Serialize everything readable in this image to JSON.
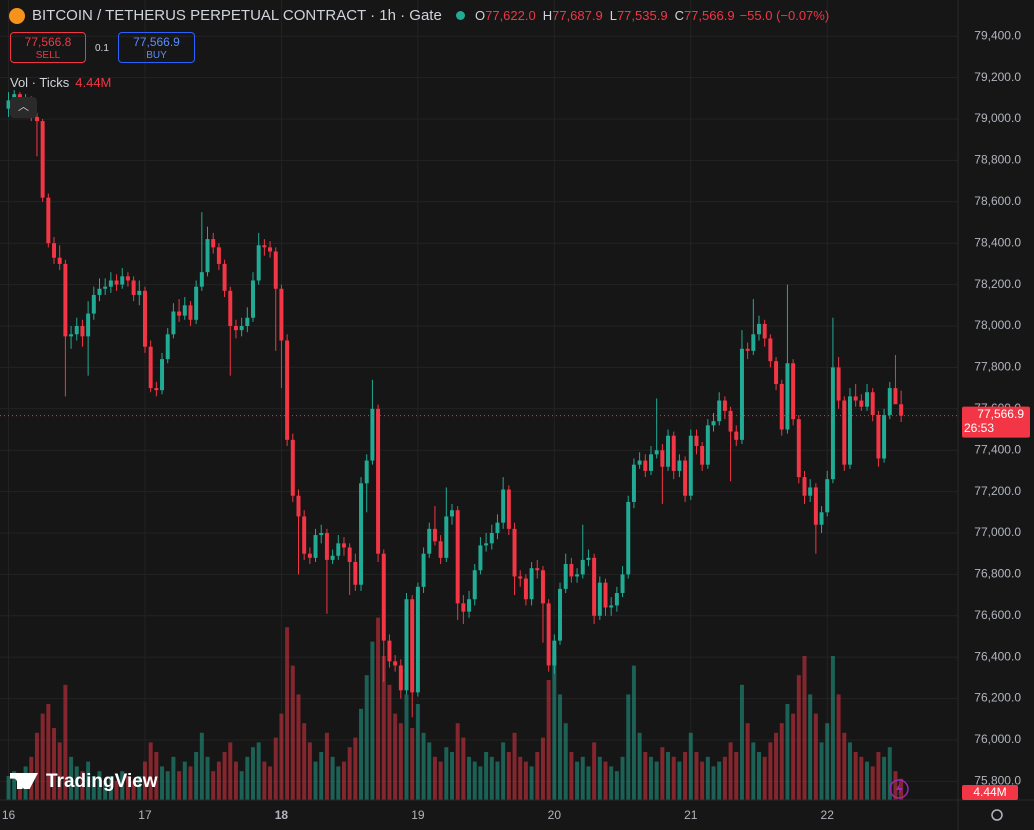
{
  "chart_data": {
    "type": "candlestick",
    "title": "BITCOIN / TETHERUS PERPETUAL CONTRACT · 1h · Gate",
    "ohlc_legend": [
      {
        "label": "O",
        "value": "77,622.0"
      },
      {
        "label": "H",
        "value": "77,687.9"
      },
      {
        "label": "L",
        "value": "77,535.9"
      },
      {
        "label": "C",
        "value": "77,566.9"
      }
    ],
    "change": "−55.0 (−0.07%)",
    "up_color": "#22ab94",
    "down_color": "#f23645",
    "open": [
      79050,
      79090,
      79120,
      79060,
      79100,
      79010,
      78990,
      78620,
      78400,
      78330,
      78300,
      77950,
      77960,
      78000,
      77950,
      78060,
      78150,
      78180,
      78190,
      78220,
      78200,
      78240,
      78220,
      78150,
      78170,
      77900,
      77700,
      77690,
      77840,
      77960,
      78070,
      78050,
      78100,
      78030,
      78190,
      78260,
      78420,
      78380,
      78300,
      78170,
      78000,
      77980,
      78000,
      78040,
      78220,
      78390,
      78380,
      78360,
      78180,
      77930,
      77450,
      77180,
      77080,
      76900,
      76880,
      76990,
      77000,
      76870,
      76890,
      76950,
      76930,
      76860,
      76750,
      77240,
      77350,
      77600,
      76900,
      76480,
      76380,
      76360,
      76240,
      76680,
      76230,
      76740,
      76900,
      77020,
      76960,
      76880,
      77080,
      77110,
      76660,
      76620,
      76680,
      76820,
      76940,
      76950,
      77000,
      77050,
      77210,
      77020,
      76790,
      76780,
      76680,
      76830,
      76820,
      76660,
      76360,
      76480,
      76730,
      76850,
      76790,
      76800,
      76870,
      76880,
      76600,
      76760,
      76640,
      76650,
      76710,
      76800,
      77150,
      77330,
      77350,
      77300,
      77380,
      77400,
      77320,
      77470,
      77300,
      77350,
      77180,
      77470,
      77420,
      77330,
      77520,
      77540,
      77640,
      77590,
      77490,
      77450,
      77890,
      77880,
      77960,
      78010,
      77940,
      77830,
      77720,
      77500,
      77820,
      77550,
      77270,
      77180,
      77220,
      77040,
      77100,
      77260,
      77800,
      77640,
      77330,
      77660,
      77640,
      77610,
      77680,
      77570,
      77360,
      77570,
      77700,
      77622
    ],
    "high": [
      79130,
      79140,
      79130,
      79120,
      79110,
      79030,
      79000,
      78640,
      78430,
      78390,
      78320,
      78000,
      78040,
      78030,
      78120,
      78190,
      78230,
      78230,
      78260,
      78250,
      78280,
      78260,
      78240,
      78220,
      78190,
      77930,
      77730,
      77870,
      77990,
      78110,
      78130,
      78140,
      78120,
      78220,
      78550,
      78480,
      78450,
      78400,
      78320,
      78190,
      78030,
      78040,
      78090,
      78260,
      78450,
      78420,
      78410,
      78380,
      78200,
      77960,
      77480,
      77210,
      77110,
      76930,
      77020,
      77040,
      77020,
      76920,
      76990,
      76980,
      76950,
      76900,
      77270,
      77380,
      77740,
      77620,
      76920,
      76510,
      76410,
      76390,
      76710,
      76700,
      76760,
      76930,
      77050,
      77130,
      76990,
      77220,
      77140,
      77130,
      76700,
      76720,
      76850,
      76980,
      77000,
      77040,
      77090,
      77270,
      77230,
      77050,
      76820,
      76800,
      76860,
      76870,
      76840,
      76680,
      76510,
      76760,
      76900,
      76880,
      76830,
      77040,
      76920,
      76900,
      76790,
      76780,
      76690,
      76740,
      76840,
      77180,
      77360,
      77390,
      77380,
      77420,
      77650,
      77430,
      77500,
      77490,
      77380,
      77370,
      77500,
      77500,
      77440,
      77550,
      77580,
      77680,
      77660,
      77610,
      77520,
      77980,
      77920,
      78130,
      78050,
      78030,
      77960,
      77850,
      77740,
      78200,
      77840,
      77570,
      77300,
      77260,
      77240,
      77130,
      77300,
      78040,
      77850,
      77660,
      77700,
      77720,
      77670,
      77720,
      77700,
      77590,
      77600,
      77730,
      77860,
      77687.9
    ],
    "low": [
      79010,
      79060,
      79040,
      79030,
      78990,
      78820,
      78600,
      78380,
      78300,
      78270,
      77660,
      77890,
      77930,
      77900,
      77760,
      78030,
      78120,
      78150,
      78160,
      78170,
      78180,
      78190,
      78120,
      78100,
      77870,
      77680,
      77660,
      77670,
      77820,
      77940,
      78020,
      78030,
      78000,
      78010,
      78170,
      78240,
      78350,
      78270,
      78140,
      77760,
      77940,
      77950,
      77970,
      78020,
      78200,
      78340,
      78330,
      77880,
      77700,
      77420,
      77150,
      76800,
      76870,
      76850,
      76860,
      76950,
      76610,
      76850,
      76870,
      76890,
      76700,
      76720,
      76720,
      77100,
      77330,
      76860,
      76280,
      76350,
      76330,
      76200,
      76220,
      76110,
      76210,
      76710,
      76880,
      76940,
      76850,
      76860,
      77040,
      76580,
      76560,
      76590,
      76650,
      76800,
      76910,
      76920,
      76970,
      77020,
      76990,
      76700,
      76740,
      76650,
      76650,
      76780,
      76470,
      76330,
      76320,
      76460,
      76710,
      76760,
      76760,
      76780,
      76840,
      76560,
      76580,
      76600,
      76600,
      76620,
      76690,
      76780,
      77120,
      77310,
      77270,
      77280,
      77360,
      77140,
      77300,
      77260,
      77270,
      77150,
      77160,
      77380,
      77300,
      77310,
      77490,
      77520,
      77550,
      77250,
      77420,
      77430,
      77840,
      77860,
      77930,
      77900,
      77800,
      77690,
      77470,
      77480,
      77520,
      77240,
      77140,
      77150,
      76900,
      77000,
      77080,
      77240,
      77600,
      77300,
      77310,
      77610,
      77590,
      77590,
      77540,
      77320,
      77340,
      77550,
      77640,
      77535.9
    ],
    "close": [
      79090,
      79120,
      79060,
      79100,
      79010,
      78990,
      78620,
      78400,
      78330,
      78300,
      77950,
      77960,
      78000,
      77950,
      78060,
      78150,
      78180,
      78190,
      78220,
      78200,
      78240,
      78220,
      78150,
      78170,
      77900,
      77700,
      77690,
      77840,
      77960,
      78070,
      78050,
      78100,
      78030,
      78190,
      78260,
      78420,
      78380,
      78300,
      78170,
      78000,
      77980,
      78000,
      78040,
      78220,
      78390,
      78380,
      78360,
      78180,
      77930,
      77450,
      77180,
      77080,
      76900,
      76880,
      76990,
      77000,
      76870,
      76890,
      76950,
      76930,
      76860,
      76750,
      77240,
      77350,
      77600,
      76900,
      76480,
      76380,
      76360,
      76240,
      76680,
      76230,
      76740,
      76900,
      77020,
      76960,
      76880,
      77080,
      77110,
      76660,
      76620,
      76680,
      76820,
      76940,
      76950,
      77000,
      77050,
      77210,
      77020,
      76790,
      76780,
      76680,
      76830,
      76820,
      76660,
      76360,
      76480,
      76730,
      76850,
      76790,
      76800,
      76870,
      76880,
      76600,
      76760,
      76640,
      76650,
      76710,
      76800,
      77150,
      77330,
      77350,
      77300,
      77380,
      77400,
      77320,
      77470,
      77300,
      77350,
      77180,
      77470,
      77420,
      77330,
      77520,
      77540,
      77640,
      77590,
      77490,
      77450,
      77890,
      77880,
      77960,
      78010,
      77940,
      77830,
      77720,
      77500,
      77820,
      77550,
      77270,
      77180,
      77220,
      77040,
      77100,
      77260,
      77800,
      77640,
      77330,
      77660,
      77640,
      77610,
      77680,
      77570,
      77360,
      77570,
      77700,
      77622,
      77566.9
    ],
    "volume": [
      5,
      6,
      4,
      7,
      9,
      14,
      18,
      20,
      15,
      12,
      24,
      9,
      7,
      6,
      8,
      5,
      6,
      4,
      5,
      4,
      6,
      5,
      4,
      5,
      8,
      12,
      10,
      7,
      6,
      9,
      6,
      8,
      7,
      10,
      14,
      9,
      6,
      8,
      10,
      12,
      8,
      6,
      9,
      11,
      12,
      8,
      7,
      13,
      18,
      36,
      28,
      22,
      16,
      12,
      8,
      10,
      14,
      9,
      7,
      8,
      11,
      13,
      19,
      26,
      33,
      38,
      30,
      24,
      18,
      16,
      22,
      15,
      20,
      14,
      12,
      9,
      8,
      11,
      10,
      16,
      13,
      9,
      8,
      7,
      10,
      9,
      8,
      12,
      10,
      14,
      9,
      8,
      7,
      10,
      13,
      25,
      30,
      22,
      16,
      10,
      8,
      9,
      7,
      12,
      9,
      8,
      7,
      6,
      9,
      22,
      28,
      14,
      10,
      9,
      8,
      11,
      10,
      9,
      8,
      10,
      14,
      10,
      8,
      9,
      7,
      8,
      9,
      12,
      10,
      24,
      16,
      12,
      10,
      9,
      12,
      14,
      16,
      20,
      18,
      26,
      30,
      22,
      18,
      12,
      16,
      30,
      22,
      14,
      12,
      10,
      9,
      8,
      7,
      10,
      9,
      11,
      6,
      4.44
    ],
    "volume_title": "Vol · Ticks",
    "volume_last_label": "4.44M",
    "last_price_label": "77,566.9",
    "countdown": "26:53",
    "xlim": [
      -1.5,
      167
    ],
    "xticks": [
      {
        "value": 0,
        "label": "16"
      },
      {
        "value": 24,
        "label": "17"
      },
      {
        "value": 48,
        "label": "18"
      },
      {
        "value": 72,
        "label": "19"
      },
      {
        "value": 96,
        "label": "20"
      },
      {
        "value": 120,
        "label": "21"
      },
      {
        "value": 144,
        "label": "22"
      }
    ],
    "ylim": [
      75710,
      79575
    ],
    "yticks": [
      {
        "value": 75800,
        "label": "75,800.0"
      },
      {
        "value": 76000,
        "label": "76,000.0"
      },
      {
        "value": 76200,
        "label": "76,200.0"
      },
      {
        "value": 76400,
        "label": "76,400.0"
      },
      {
        "value": 76600,
        "label": "76,600.0"
      },
      {
        "value": 76800,
        "label": "76,800.0"
      },
      {
        "value": 77000,
        "label": "77,000.0"
      },
      {
        "value": 77200,
        "label": "77,200.0"
      },
      {
        "value": 77400,
        "label": "77,400.0"
      },
      {
        "value": 77600,
        "label": "77,600.0"
      },
      {
        "value": 77800,
        "label": "77,800.0"
      },
      {
        "value": 78000,
        "label": "78,000.0"
      },
      {
        "value": 78200,
        "label": "78,200.0"
      },
      {
        "value": 78400,
        "label": "78,400.0"
      },
      {
        "value": 78600,
        "label": "78,600.0"
      },
      {
        "value": 78800,
        "label": "78,800.0"
      },
      {
        "value": 79000,
        "label": "79,000.0"
      },
      {
        "value": 79200,
        "label": "79,200.0"
      },
      {
        "value": 79400,
        "label": "79,400.0"
      }
    ],
    "y2lim": [
      0,
      50
    ],
    "grid": true
  },
  "order_panel": {
    "sell_price": "77,566.8",
    "sell": "SELL",
    "quantity": "0.1",
    "buy_price": "77,566.9",
    "buy": "BUY"
  },
  "branding": "TradingView"
}
